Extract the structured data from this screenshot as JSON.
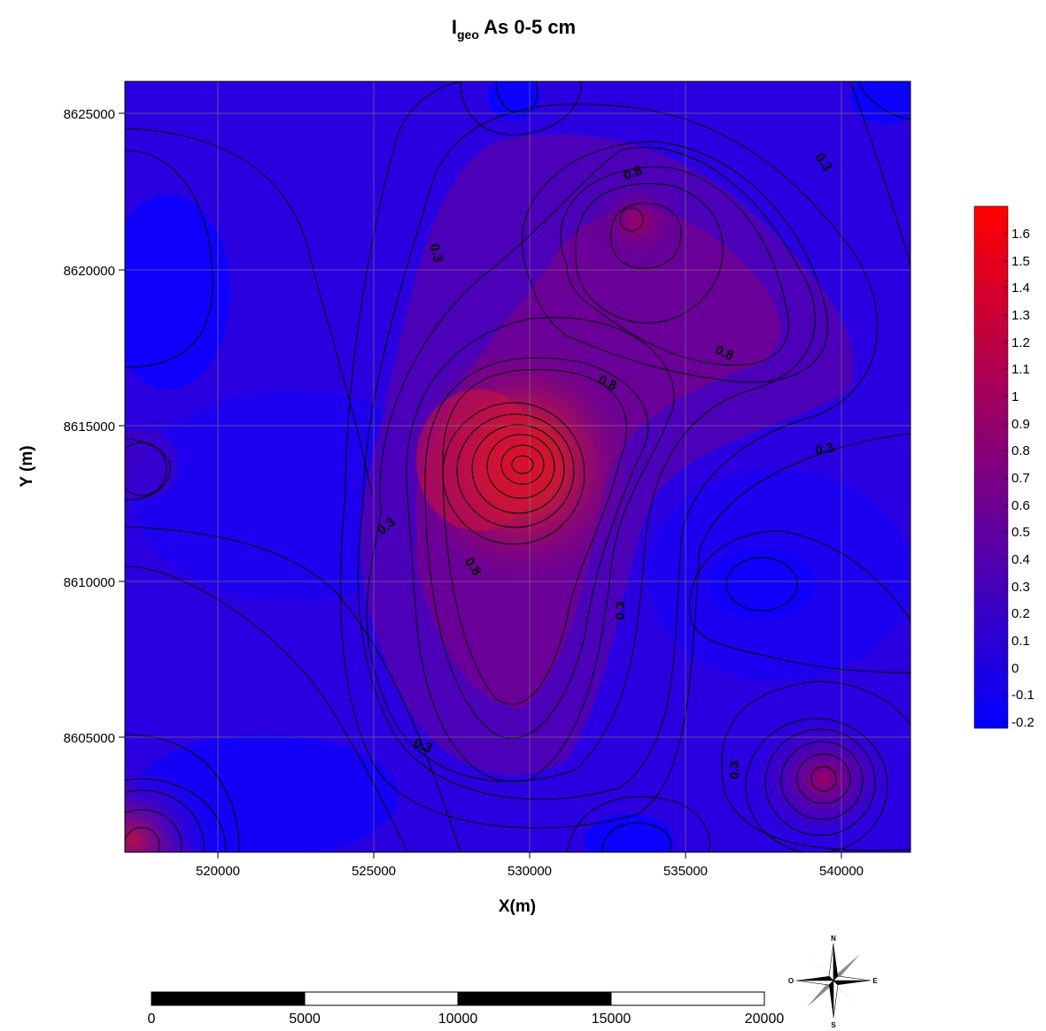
{
  "title": {
    "main": "I",
    "sub": "geo",
    "rest": " As 0-5 cm"
  },
  "x_axis_title": "X(m)",
  "y_axis_title": "Y (m)",
  "x_ticks": [
    "520000",
    "525000",
    "530000",
    "535000",
    "540000"
  ],
  "y_ticks": [
    "8625000",
    "8620000",
    "8615000",
    "8610000",
    "8605000"
  ],
  "colorbar": {
    "labels": [
      "1.6",
      "1.5",
      "1.4",
      "1.3",
      "1.2",
      "1.1",
      "1",
      "0.9",
      "0.8",
      "0.7",
      "0.6",
      "0.5",
      "0.4",
      "0.3",
      "0.2",
      "0.1",
      "0",
      "-0.1",
      "-0.2"
    ],
    "colors": {
      "low": "#0000ff",
      "mid": "#800080",
      "high": "#ff0000"
    }
  },
  "contour_labels": [
    {
      "text": "0.8",
      "id": "label-08-north"
    },
    {
      "text": "0.3",
      "id": "label-03-northeast"
    },
    {
      "text": "0.3",
      "id": "label-03-west-upper"
    },
    {
      "text": "0.8",
      "id": "label-08-east"
    },
    {
      "text": "0.8",
      "id": "label-08-center"
    },
    {
      "text": "0.3",
      "id": "label-03-east"
    },
    {
      "text": "0.3",
      "id": "label-03-west-lower"
    },
    {
      "text": "0.8",
      "id": "label-08-south"
    },
    {
      "text": "0.3",
      "id": "label-03-southcenter"
    },
    {
      "text": "0.3",
      "id": "label-03-south"
    },
    {
      "text": "0.3",
      "id": "label-03-southeast"
    }
  ],
  "scale_bar": {
    "labels": [
      "0",
      "5000",
      "10000",
      "15000",
      "20000"
    ]
  },
  "compass": {
    "letters": [
      "N",
      "E",
      "S",
      "O"
    ]
  }
}
